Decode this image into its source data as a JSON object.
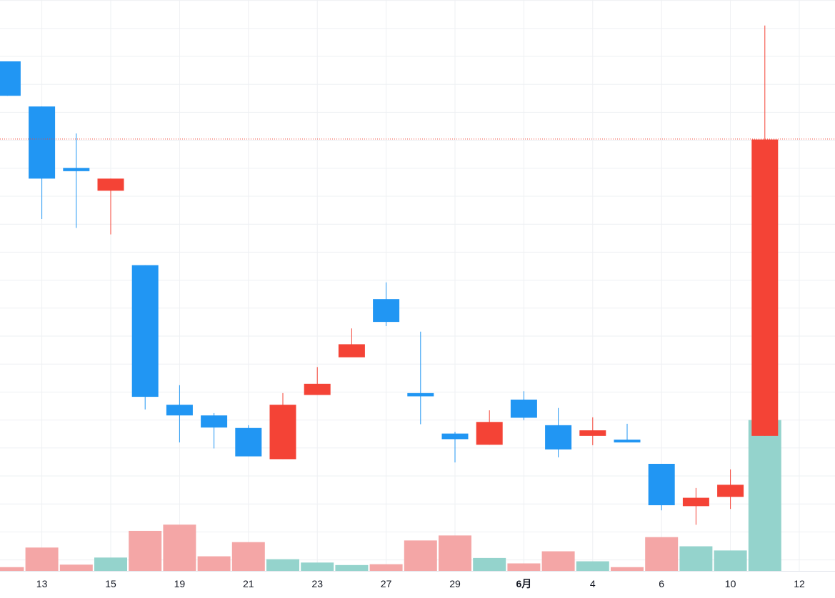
{
  "chart_data": {
    "type": "candlestick",
    "grid": true,
    "x_tick_labels": [
      "13",
      "15",
      "19",
      "21",
      "23",
      "27",
      "29",
      "6月",
      "4",
      "6",
      "10",
      "12"
    ],
    "bold_tick_labels": [
      "6月"
    ],
    "up_color": "#f44336",
    "down_color": "#2196f3",
    "volume_up_color": "#f4a6a6",
    "volume_down_color": "#94d3cc",
    "price_line_color": "#f44336",
    "price_range": [
      0,
      100
    ],
    "current_price": 78.7,
    "candles": [
      {
        "dir": "down",
        "open": 95.4,
        "close": 88.0,
        "high": 95.4,
        "low": 88.0
      },
      {
        "dir": "down",
        "open": 85.7,
        "close": 70.2,
        "high": 85.7,
        "low": 61.5
      },
      {
        "dir": "down",
        "open": 72.5,
        "close": 71.8,
        "high": 79.9,
        "low": 59.6
      },
      {
        "dir": "up",
        "open": 67.6,
        "close": 70.2,
        "high": 70.2,
        "low": 58.2
      },
      {
        "dir": "down",
        "open": 51.6,
        "close": 23.3,
        "high": 51.6,
        "low": 20.6
      },
      {
        "dir": "down",
        "open": 21.6,
        "close": 19.3,
        "high": 25.8,
        "low": 13.5
      },
      {
        "dir": "down",
        "open": 19.3,
        "close": 16.7,
        "high": 19.8,
        "low": 12.2
      },
      {
        "dir": "down",
        "open": 16.6,
        "close": 10.5,
        "high": 17.2,
        "low": 10.5
      },
      {
        "dir": "up",
        "open": 9.9,
        "close": 21.6,
        "high": 24.1,
        "low": 9.9
      },
      {
        "dir": "up",
        "open": 23.7,
        "close": 26.1,
        "high": 29.7,
        "low": 23.7
      },
      {
        "dir": "up",
        "open": 31.8,
        "close": 34.6,
        "high": 38.0,
        "low": 32.1
      },
      {
        "dir": "down",
        "open": 39.4,
        "close": 44.3,
        "high": 47.9,
        "low": 38.5
      },
      {
        "dir": "down",
        "open": 24.1,
        "close": 23.4,
        "high": 37.3,
        "low": 17.4
      },
      {
        "dir": "down",
        "open": 15.4,
        "close": 14.2,
        "high": 15.8,
        "low": 9.2
      },
      {
        "dir": "up",
        "open": 13.0,
        "close": 17.9,
        "high": 20.4,
        "low": 13.0
      },
      {
        "dir": "down",
        "open": 18.8,
        "close": 22.7,
        "high": 24.5,
        "low": 18.3
      },
      {
        "dir": "down",
        "open": 12.0,
        "close": 17.2,
        "high": 20.9,
        "low": 10.3
      },
      {
        "dir": "up",
        "open": 14.9,
        "close": 16.1,
        "high": 18.9,
        "low": 12.9
      },
      {
        "dir": "down",
        "open": 13.5,
        "close": 14.1,
        "high": 17.5,
        "low": 13.5
      },
      {
        "dir": "down",
        "open": 0.0,
        "close": 8.9,
        "high": 8.9,
        "low": -1.1
      },
      {
        "dir": "up",
        "open": -0.2,
        "close": 1.6,
        "high": 3.7,
        "low": -4.2
      },
      {
        "dir": "up",
        "open": 1.8,
        "close": 4.4,
        "high": 7.7,
        "low": -0.8
      },
      {
        "dir": "up",
        "open": 14.9,
        "close": 78.6,
        "high": 103.1,
        "low": 14.9
      }
    ],
    "volume": [
      {
        "value": 0.9,
        "dir": "up"
      },
      {
        "value": 5.6,
        "dir": "up"
      },
      {
        "value": 1.5,
        "dir": "up"
      },
      {
        "value": 3.2,
        "dir": "down"
      },
      {
        "value": 9.6,
        "dir": "up"
      },
      {
        "value": 11.1,
        "dir": "up"
      },
      {
        "value": 3.5,
        "dir": "up"
      },
      {
        "value": 6.9,
        "dir": "up"
      },
      {
        "value": 2.8,
        "dir": "down"
      },
      {
        "value": 2.0,
        "dir": "down"
      },
      {
        "value": 1.4,
        "dir": "down"
      },
      {
        "value": 1.6,
        "dir": "up"
      },
      {
        "value": 7.3,
        "dir": "up"
      },
      {
        "value": 8.5,
        "dir": "up"
      },
      {
        "value": 3.1,
        "dir": "down"
      },
      {
        "value": 1.8,
        "dir": "up"
      },
      {
        "value": 4.7,
        "dir": "up"
      },
      {
        "value": 2.3,
        "dir": "down"
      },
      {
        "value": 0.9,
        "dir": "up"
      },
      {
        "value": 8.1,
        "dir": "up"
      },
      {
        "value": 5.9,
        "dir": "down"
      },
      {
        "value": 4.9,
        "dir": "down"
      },
      {
        "value": 36.2,
        "dir": "down"
      }
    ]
  }
}
